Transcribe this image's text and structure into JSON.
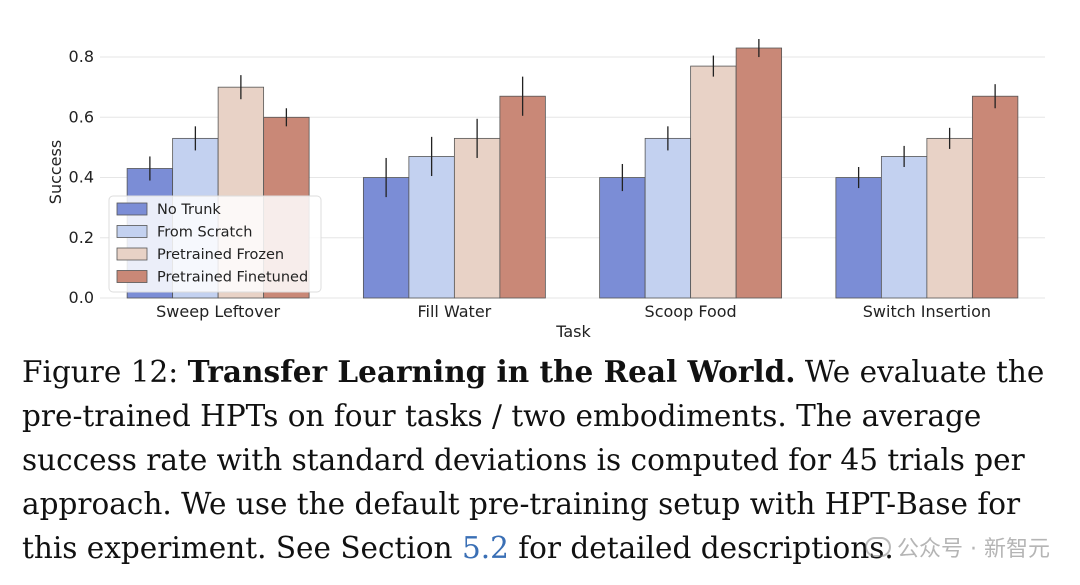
{
  "chart_data": {
    "type": "bar",
    "title": "",
    "xlabel": "Task",
    "ylabel": "Success",
    "ylim": [
      0.0,
      0.85
    ],
    "yticks": [
      "0.0",
      "0.2",
      "0.4",
      "0.6",
      "0.8"
    ],
    "ytick_values": [
      0.0,
      0.2,
      0.4,
      0.6,
      0.8
    ],
    "grid": "horizontal",
    "legend_position": "lower-left",
    "categories": [
      "Sweep Leftover",
      "Fill Water",
      "Scoop Food",
      "Switch Insertion"
    ],
    "series": [
      {
        "name": "No Trunk",
        "color": "#7b8dd6",
        "values": [
          0.43,
          0.4,
          0.4,
          0.4
        ],
        "errors": [
          0.04,
          0.065,
          0.045,
          0.035
        ]
      },
      {
        "name": "From Scratch",
        "color": "#c3d1f0",
        "values": [
          0.53,
          0.47,
          0.53,
          0.47
        ],
        "errors": [
          0.04,
          0.065,
          0.04,
          0.035
        ]
      },
      {
        "name": "Pretrained Frozen",
        "color": "#e8d2c6",
        "values": [
          0.7,
          0.53,
          0.77,
          0.53
        ],
        "errors": [
          0.04,
          0.065,
          0.035,
          0.035
        ]
      },
      {
        "name": "Pretrained Finetuned",
        "color": "#c98877",
        "values": [
          0.6,
          0.67,
          0.83,
          0.67
        ],
        "errors": [
          0.03,
          0.065,
          0.03,
          0.04
        ]
      }
    ]
  },
  "caption": {
    "label": "Figure 12: ",
    "bold_title": "Transfer Learning in the Real World.",
    "line1_rest": " We evaluate the",
    "line2": "pre-trained HPTs on four tasks / two embodiments.  The average",
    "line3": "success rate with standard deviations is computed for 45 trials per",
    "line4": "approach. We use the default pre-training setup with HPT-Base for",
    "line5_pre": "this experiment. See Section ",
    "line5_ref": "5.2",
    "line5_post": " for detailed descriptions."
  },
  "watermark": {
    "text": "公众号 · 新智元"
  }
}
